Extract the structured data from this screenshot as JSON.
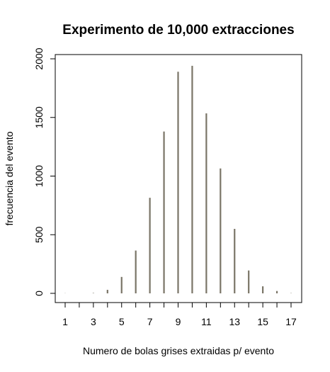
{
  "chart_data": {
    "type": "bar",
    "title": "Experimento de 10,000 extracciones",
    "xlabel": "Numero de bolas grises extraidas p/ evento",
    "ylabel": "frecuencia del evento",
    "x": [
      1,
      2,
      3,
      4,
      5,
      6,
      7,
      8,
      9,
      10,
      11,
      12,
      13,
      14,
      15,
      16,
      17
    ],
    "values": [
      1,
      0,
      3,
      30,
      140,
      365,
      815,
      1380,
      1890,
      1940,
      1535,
      1065,
      550,
      195,
      60,
      20,
      2
    ],
    "xticks": [
      "1",
      "3",
      "5",
      "7",
      "9",
      "11",
      "13",
      "15",
      "17"
    ],
    "yticks": [
      "0",
      "500",
      "1000",
      "1500",
      "2000"
    ],
    "xlim": [
      1,
      17
    ],
    "ylim": [
      0,
      2000
    ],
    "grid": false,
    "bar_color": "#7a7567"
  }
}
